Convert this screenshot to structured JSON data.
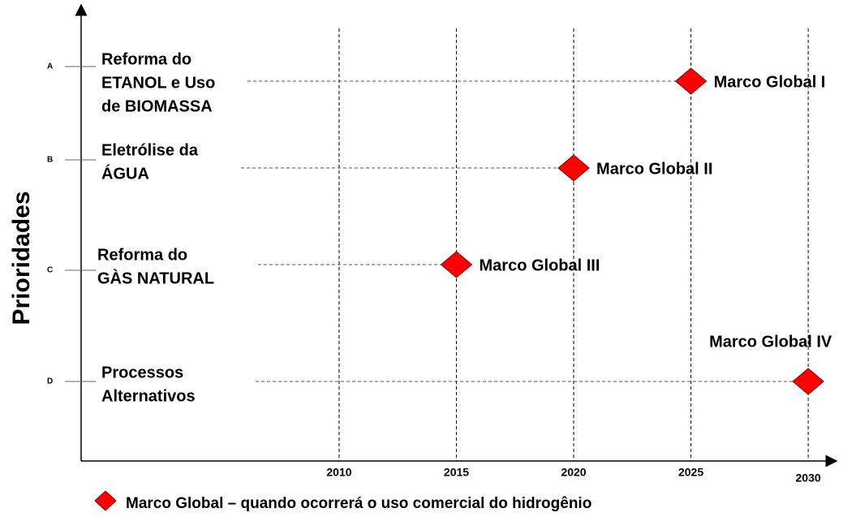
{
  "chart_data": {
    "type": "scatter",
    "y_label": "Prioridades",
    "categories": [
      "A",
      "B",
      "C",
      "D"
    ],
    "category_labels": [
      [
        "Reforma do",
        "ETANOL e Uso",
        "de BIOMASSA"
      ],
      [
        "Eletrólise da",
        "ÁGUA"
      ],
      [
        "Reforma do",
        "GÀS NATURAL"
      ],
      [
        "Processos",
        "Alternativos"
      ]
    ],
    "xlim": [
      1999,
      2031
    ],
    "xticks": [
      2010,
      2015,
      2020,
      2025,
      2030
    ],
    "color": "#ff0000",
    "points": [
      {
        "label": "Marco Global I",
        "x": 2025,
        "y": "A"
      },
      {
        "label": "Marco Global II",
        "x": 2020,
        "y": "B"
      },
      {
        "label": "Marco Global III",
        "x": 2015,
        "y": "C"
      },
      {
        "label": "Marco Global IV",
        "x": 2030,
        "y": "D"
      }
    ],
    "legend": "Marco Global – quando ocorrerá o uso comercial do hidrogênio"
  }
}
